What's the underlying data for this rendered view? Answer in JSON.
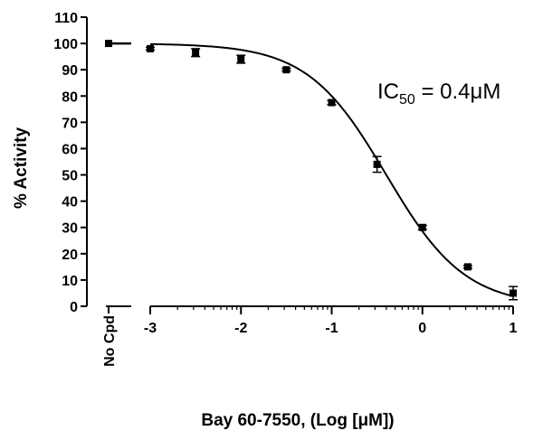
{
  "chart_data": {
    "type": "scatter",
    "title": "",
    "xlabel": "Bay 60-7550, (Log [μM])",
    "ylabel": "% Activity",
    "ylim": [
      0,
      110
    ],
    "xlim": [
      -3,
      1
    ],
    "grid": false,
    "legend": "none",
    "y_ticks": [
      0,
      10,
      20,
      30,
      40,
      50,
      60,
      70,
      80,
      90,
      100,
      110
    ],
    "x_ticks": [
      -3,
      -2,
      -1,
      0,
      1
    ],
    "control": {
      "label": "No Cpd",
      "value": 100
    },
    "series": [
      {
        "x": [
          -3,
          -2.5,
          -2,
          -1.5,
          -1,
          -0.5,
          0,
          0.5,
          1
        ],
        "y": [
          98,
          96.5,
          94,
          90,
          77.5,
          54,
          30,
          15,
          5
        ],
        "error": [
          0.5,
          1.5,
          1.5,
          0.5,
          0.8,
          3,
          0.8,
          0.5,
          2.5
        ]
      }
    ],
    "fit": {
      "top": 100,
      "bottom": 0,
      "log_ic50": -0.398,
      "hill": -1.0
    },
    "annotation": {
      "prefix": "IC",
      "subscript": "50",
      "suffix": " = 0.4μM"
    }
  }
}
